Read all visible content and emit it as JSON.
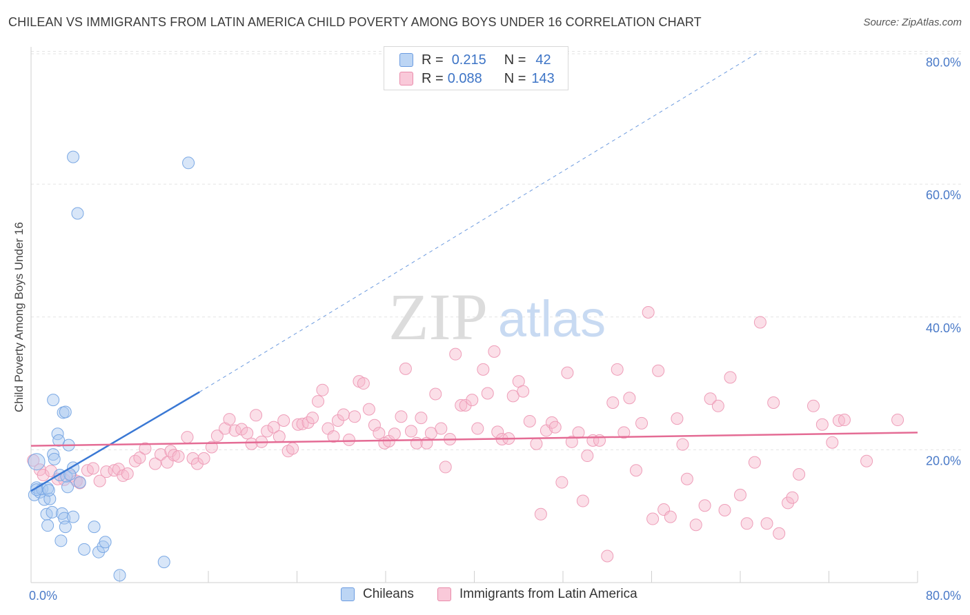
{
  "header": {
    "title": "CHILEAN VS IMMIGRANTS FROM LATIN AMERICA CHILD POVERTY AMONG BOYS UNDER 16 CORRELATION CHART",
    "source": "Source: ZipAtlas.com"
  },
  "watermark": {
    "zip": "ZIP",
    "atlas": "atlas"
  },
  "legend": {
    "rows": [
      {
        "r_label": "R =",
        "r_value": "0.215",
        "n_label": "N =",
        "n_value": "42",
        "color": "#a9c8f0"
      },
      {
        "r_label": "R =",
        "r_value": "0.088",
        "n_label": "N =",
        "n_value": "143",
        "color": "#f6b7cc"
      }
    ]
  },
  "colors": {
    "blue": "#3a78d4",
    "pink": "#e46b94",
    "blue_fill": "#a9c8f0",
    "pink_fill": "#f6b7cc",
    "axis_text": "#4a7ac8"
  },
  "chart_data": {
    "type": "scatter",
    "title": "CHILEAN VS IMMIGRANTS FROM LATIN AMERICA CHILD POVERTY AMONG BOYS UNDER 16 CORRELATION CHART",
    "xlabel": "",
    "ylabel": "Child Poverty Among Boys Under 16",
    "xlim": [
      0,
      80
    ],
    "ylim": [
      0,
      80
    ],
    "x_ticks": [
      "0.0%",
      "80.0%"
    ],
    "y_ticks": [
      "20.0%",
      "40.0%",
      "60.0%",
      "80.0%"
    ],
    "y_tick_values": [
      20,
      40,
      60,
      80
    ],
    "grid": true,
    "legend_position": "top-center",
    "series": [
      {
        "name": "Chileans",
        "trend": {
          "x1": 0,
          "y1": 13.8,
          "x2": 15.2,
          "y2": 28.7,
          "dash_x2": 65.8,
          "dash_y2": 80
        },
        "points": [
          [
            0.5,
            18.2
          ],
          [
            0.3,
            13.2
          ],
          [
            0.5,
            14.3
          ],
          [
            0.8,
            13.6
          ],
          [
            1.0,
            14.1
          ],
          [
            1.2,
            12.5
          ],
          [
            1.4,
            10.3
          ],
          [
            1.5,
            14.2
          ],
          [
            1.7,
            12.6
          ],
          [
            1.6,
            13.9
          ],
          [
            1.9,
            10.6
          ],
          [
            1.5,
            8.6
          ],
          [
            2.0,
            19.3
          ],
          [
            2.1,
            18.6
          ],
          [
            2.0,
            27.5
          ],
          [
            2.4,
            22.4
          ],
          [
            2.5,
            21.4
          ],
          [
            2.9,
            25.6
          ],
          [
            3.1,
            25.7
          ],
          [
            3.4,
            20.7
          ],
          [
            2.6,
            16.2
          ],
          [
            3.2,
            16.0
          ],
          [
            3.3,
            14.4
          ],
          [
            3.8,
            17.3
          ],
          [
            3.5,
            16.3
          ],
          [
            2.8,
            10.4
          ],
          [
            3.0,
            9.7
          ],
          [
            3.8,
            9.9
          ],
          [
            4.4,
            15.1
          ],
          [
            3.1,
            8.4
          ],
          [
            2.7,
            6.3
          ],
          [
            4.8,
            5.0
          ],
          [
            5.7,
            8.4
          ],
          [
            6.1,
            4.6
          ],
          [
            6.5,
            5.4
          ],
          [
            6.7,
            6.1
          ],
          [
            8.0,
            1.1
          ],
          [
            12.0,
            3.1
          ],
          [
            3.8,
            64.1
          ],
          [
            14.2,
            63.2
          ],
          [
            4.2,
            55.6
          ],
          [
            0.5,
            14.0
          ]
        ]
      },
      {
        "name": "Immigrants from Latin America",
        "trend": {
          "x1": 0,
          "y1": 20.6,
          "x2": 80,
          "y2": 22.6
        },
        "points": [
          [
            0.2,
            18.4
          ],
          [
            0.8,
            17.0
          ],
          [
            1.1,
            16.2
          ],
          [
            1.8,
            16.8
          ],
          [
            2.4,
            15.6
          ],
          [
            3.0,
            15.5
          ],
          [
            3.6,
            16.0
          ],
          [
            4.1,
            15.3
          ],
          [
            4.4,
            15.0
          ],
          [
            5.1,
            16.9
          ],
          [
            5.6,
            17.2
          ],
          [
            6.2,
            15.3
          ],
          [
            6.8,
            16.7
          ],
          [
            7.5,
            16.9
          ],
          [
            7.9,
            17.1
          ],
          [
            8.3,
            16.1
          ],
          [
            8.7,
            16.4
          ],
          [
            9.4,
            18.3
          ],
          [
            9.8,
            18.8
          ],
          [
            10.3,
            20.2
          ],
          [
            11.2,
            17.9
          ],
          [
            11.7,
            19.3
          ],
          [
            12.3,
            18.1
          ],
          [
            12.6,
            19.8
          ],
          [
            12.9,
            19.2
          ],
          [
            13.3,
            19.0
          ],
          [
            14.1,
            21.9
          ],
          [
            14.6,
            18.7
          ],
          [
            15.0,
            17.9
          ],
          [
            15.6,
            18.7
          ],
          [
            16.3,
            20.4
          ],
          [
            16.8,
            22.1
          ],
          [
            17.5,
            23.2
          ],
          [
            17.9,
            24.6
          ],
          [
            18.4,
            22.9
          ],
          [
            19.0,
            23.1
          ],
          [
            19.5,
            22.5
          ],
          [
            19.9,
            20.9
          ],
          [
            20.3,
            25.2
          ],
          [
            20.8,
            21.2
          ],
          [
            21.3,
            22.8
          ],
          [
            21.9,
            23.4
          ],
          [
            22.4,
            22.0
          ],
          [
            22.8,
            24.4
          ],
          [
            23.2,
            19.8
          ],
          [
            23.6,
            20.2
          ],
          [
            24.1,
            23.8
          ],
          [
            24.5,
            23.9
          ],
          [
            25.0,
            24.1
          ],
          [
            25.4,
            24.8
          ],
          [
            25.9,
            27.3
          ],
          [
            26.3,
            29.0
          ],
          [
            26.8,
            23.2
          ],
          [
            27.3,
            22.0
          ],
          [
            27.7,
            24.4
          ],
          [
            28.2,
            25.3
          ],
          [
            28.7,
            21.5
          ],
          [
            29.2,
            25.0
          ],
          [
            29.6,
            30.3
          ],
          [
            30.0,
            30.0
          ],
          [
            30.5,
            26.1
          ],
          [
            31.0,
            23.7
          ],
          [
            31.4,
            22.5
          ],
          [
            31.9,
            21.0
          ],
          [
            32.3,
            21.3
          ],
          [
            32.8,
            22.4
          ],
          [
            33.4,
            25.0
          ],
          [
            33.8,
            32.2
          ],
          [
            34.3,
            22.8
          ],
          [
            34.8,
            21.0
          ],
          [
            35.2,
            24.8
          ],
          [
            35.7,
            21.0
          ],
          [
            36.1,
            22.5
          ],
          [
            36.5,
            28.4
          ],
          [
            37.0,
            23.2
          ],
          [
            37.4,
            17.4
          ],
          [
            37.8,
            21.6
          ],
          [
            38.3,
            34.4
          ],
          [
            38.8,
            26.7
          ],
          [
            39.2,
            26.7
          ],
          [
            39.8,
            27.5
          ],
          [
            40.3,
            23.2
          ],
          [
            40.8,
            32.1
          ],
          [
            41.2,
            28.5
          ],
          [
            41.8,
            34.8
          ],
          [
            42.1,
            22.7
          ],
          [
            42.5,
            21.6
          ],
          [
            43.1,
            21.7
          ],
          [
            43.5,
            28.1
          ],
          [
            44.0,
            30.3
          ],
          [
            44.4,
            28.8
          ],
          [
            45.0,
            24.3
          ],
          [
            45.6,
            20.9
          ],
          [
            46.0,
            10.3
          ],
          [
            46.5,
            22.9
          ],
          [
            47.0,
            24.1
          ],
          [
            47.3,
            23.4
          ],
          [
            47.9,
            15.1
          ],
          [
            48.4,
            31.6
          ],
          [
            48.8,
            21.2
          ],
          [
            49.4,
            22.6
          ],
          [
            49.8,
            12.3
          ],
          [
            50.2,
            19.1
          ],
          [
            50.7,
            21.4
          ],
          [
            51.3,
            21.4
          ],
          [
            52.0,
            4.0
          ],
          [
            52.5,
            27.1
          ],
          [
            52.9,
            32.1
          ],
          [
            53.5,
            22.6
          ],
          [
            54.0,
            27.8
          ],
          [
            54.6,
            16.9
          ],
          [
            55.1,
            24.0
          ],
          [
            55.7,
            40.7
          ],
          [
            56.1,
            9.6
          ],
          [
            56.6,
            31.9
          ],
          [
            57.1,
            11.0
          ],
          [
            57.7,
            9.9
          ],
          [
            58.3,
            24.7
          ],
          [
            58.8,
            20.8
          ],
          [
            59.2,
            15.6
          ],
          [
            60.0,
            8.7
          ],
          [
            60.8,
            11.6
          ],
          [
            61.3,
            27.7
          ],
          [
            62.0,
            26.6
          ],
          [
            62.6,
            10.9
          ],
          [
            63.1,
            30.9
          ],
          [
            64.0,
            13.2
          ],
          [
            64.6,
            8.9
          ],
          [
            65.3,
            18.1
          ],
          [
            65.8,
            39.2
          ],
          [
            66.4,
            8.9
          ],
          [
            67.0,
            27.1
          ],
          [
            67.5,
            7.4
          ],
          [
            68.3,
            12.0
          ],
          [
            68.7,
            12.8
          ],
          [
            69.3,
            16.3
          ],
          [
            70.6,
            26.6
          ],
          [
            71.4,
            23.8
          ],
          [
            72.3,
            21.1
          ],
          [
            72.9,
            24.4
          ],
          [
            73.4,
            24.5
          ],
          [
            75.4,
            18.3
          ],
          [
            78.2,
            24.5
          ]
        ]
      }
    ]
  },
  "bottom_legend": {
    "items": [
      {
        "label": "Chileans"
      },
      {
        "label": "Immigrants from Latin America"
      }
    ]
  }
}
